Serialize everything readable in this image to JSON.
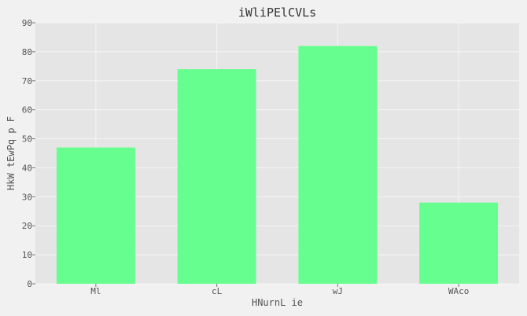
{
  "chart_data": {
    "type": "bar",
    "title": "iWliPElCVLs",
    "xlabel": "HNurnL ie",
    "ylabel": "HkW tEwPq p F",
    "categories": [
      "Ml",
      "cL",
      "wJ",
      "WAco"
    ],
    "values": [
      47,
      74,
      82,
      28
    ],
    "ylim": [
      0,
      90
    ],
    "yticks": [
      0,
      10,
      20,
      30,
      40,
      50,
      60,
      70,
      80,
      90
    ],
    "grid": true,
    "bar_color": "#66ff8f",
    "plot_background": "#e5e5e5",
    "figure_background": "#f1f1f1",
    "grid_color": "#f5f5f5"
  }
}
